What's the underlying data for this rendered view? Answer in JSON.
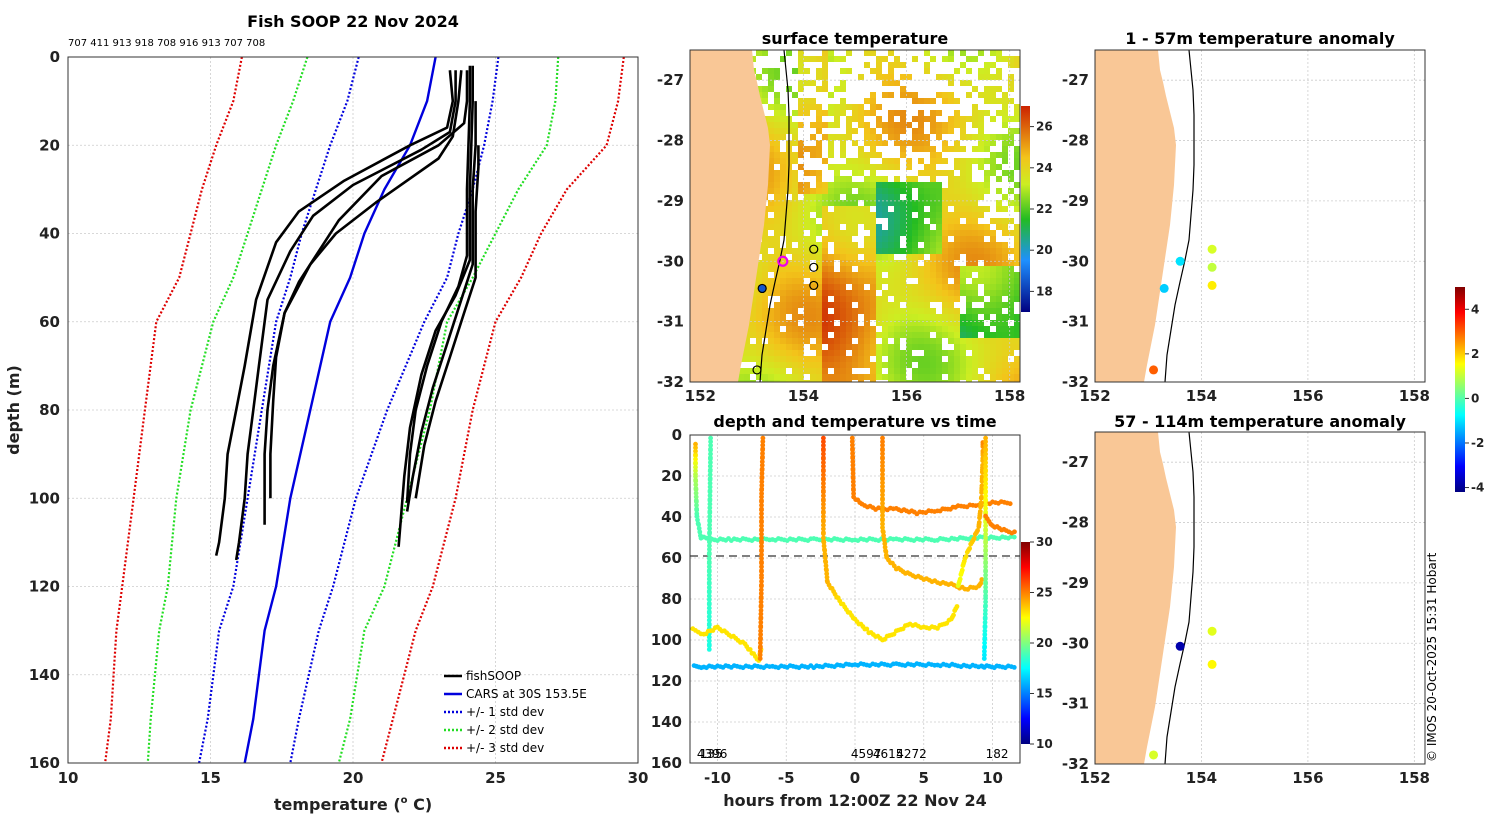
{
  "colors": {
    "fishsoop": "#000000",
    "cars": "#0000dd",
    "std1": "#0000dd",
    "std2": "#22dd22",
    "std3": "#dd0000",
    "land": "#f9c796",
    "grid": "#cccccc",
    "highlight": "#ee00ee",
    "dashed": "#808080"
  },
  "credit": "© IMOS 20-Oct-2025 15:31 Hobart",
  "chart_data": [
    {
      "id": "profile",
      "type": "line",
      "title": "Fish SOOP 22 Nov 2024",
      "subtitle": "707 411 913 918 708 916 913 707 708",
      "xlabel": "temperature (",
      "xlabel_sup": "o",
      "xlabel_tail": " C)",
      "ylabel": "depth (m)",
      "xlim": [
        10,
        30
      ],
      "ylim": [
        0,
        160
      ],
      "xticks": [
        "10",
        "15",
        "20",
        "25",
        "30"
      ],
      "yticks": [
        "0",
        "20",
        "40",
        "60",
        "80",
        "100",
        "120",
        "140",
        "160"
      ],
      "legend": [
        "fishSOOP",
        "CARS at 30S 153.5E",
        "+/- 1 std dev",
        "+/- 2 std dev",
        "+/- 3 std dev"
      ],
      "cars": {
        "x": [
          22.9,
          22.6,
          22.0,
          21.1,
          20.4,
          19.9,
          19.2,
          18.5,
          17.8,
          17.3,
          16.9,
          16.5,
          16.2
        ],
        "y": [
          0,
          10,
          20,
          30,
          40,
          50,
          60,
          80,
          100,
          120,
          130,
          150,
          160
        ]
      },
      "std_minus1": {
        "x": [
          20.2,
          19.8,
          19.2,
          18.7,
          18.2,
          17.8,
          17.3,
          16.8,
          16.3,
          15.8,
          15.3,
          14.9,
          14.6
        ],
        "y": [
          0,
          10,
          20,
          30,
          40,
          50,
          60,
          80,
          100,
          120,
          130,
          150,
          160
        ]
      },
      "std_plus1": {
        "x": [
          25.1,
          24.9,
          24.6,
          24.2,
          23.7,
          23.3,
          22.5,
          21.2,
          20.1,
          19.3,
          18.8,
          18.1,
          17.8
        ],
        "y": [
          0,
          10,
          20,
          30,
          40,
          50,
          60,
          80,
          100,
          120,
          130,
          150,
          160
        ]
      },
      "std_minus2": {
        "x": [
          18.4,
          17.9,
          17.3,
          16.8,
          16.3,
          15.8,
          15.1,
          14.3,
          13.8,
          13.5,
          13.2,
          12.9,
          12.8
        ],
        "y": [
          0,
          10,
          20,
          30,
          40,
          50,
          60,
          80,
          100,
          120,
          130,
          150,
          160
        ]
      },
      "std_plus2": {
        "x": [
          27.2,
          27.1,
          26.8,
          25.8,
          25.0,
          24.2,
          23.3,
          22.7,
          21.9,
          21.1,
          20.4,
          19.9,
          19.5
        ],
        "y": [
          0,
          10,
          20,
          30,
          40,
          50,
          60,
          80,
          100,
          120,
          130,
          150,
          160
        ]
      },
      "std_minus3": {
        "x": [
          16.1,
          15.8,
          15.2,
          14.7,
          14.3,
          13.9,
          13.1,
          12.7,
          12.3,
          11.9,
          11.7,
          11.5,
          11.3
        ],
        "y": [
          0,
          10,
          20,
          30,
          40,
          50,
          60,
          80,
          100,
          120,
          130,
          150,
          160
        ]
      },
      "std_plus3": {
        "x": [
          29.5,
          29.3,
          28.9,
          27.5,
          26.6,
          25.9,
          25.0,
          24.2,
          23.6,
          22.8,
          22.2,
          21.4,
          21.0
        ],
        "y": [
          0,
          10,
          20,
          30,
          40,
          50,
          60,
          80,
          100,
          120,
          130,
          150,
          160
        ]
      },
      "fishsoop": [
        {
          "x": [
            23.4,
            23.5,
            23.3,
            22.0,
            19.7,
            18.1,
            17.3,
            16.6,
            16.2,
            15.9,
            15.6,
            15.5,
            15.3,
            15.2
          ],
          "y": [
            3,
            10,
            16,
            20,
            28,
            35,
            42,
            55,
            70,
            80,
            90,
            100,
            110,
            113
          ]
        },
        {
          "x": [
            23.6,
            23.6,
            23.4,
            22.4,
            20.0,
            18.6,
            17.8,
            17.0,
            16.7,
            16.5,
            16.3,
            16.2,
            16.0,
            15.9
          ],
          "y": [
            3,
            10,
            17,
            21,
            29,
            36,
            44,
            55,
            70,
            80,
            90,
            100,
            110,
            114
          ]
        },
        {
          "x": [
            23.8,
            23.7,
            23.5,
            23.0,
            20.8,
            19.4,
            18.5,
            17.6,
            17.2,
            17.0,
            16.9,
            16.9,
            16.9
          ],
          "y": [
            3,
            10,
            18,
            23,
            33,
            40,
            47,
            58,
            70,
            80,
            90,
            100,
            106
          ]
        },
        {
          "x": [
            24.0,
            24.0,
            23.9,
            23.0,
            21.0,
            19.5,
            18.6,
            18.1,
            17.6,
            17.3,
            17.2,
            17.1,
            17.1
          ],
          "y": [
            3,
            10,
            15,
            20,
            27,
            37,
            46,
            51,
            58,
            68,
            78,
            90,
            100
          ]
        },
        {
          "x": [
            24.1,
            24.1,
            24.0,
            24.0,
            23.7,
            23.1,
            22.6,
            22.2,
            22.0,
            21.9
          ],
          "y": [
            2,
            10,
            30,
            45,
            52,
            60,
            70,
            80,
            90,
            101
          ]
        },
        {
          "x": [
            24.2,
            24.2,
            24.1,
            24.1,
            23.6,
            22.9,
            22.4,
            22.0,
            21.8,
            21.6
          ],
          "y": [
            2,
            10,
            30,
            46,
            54,
            62,
            72,
            84,
            95,
            111
          ]
        },
        {
          "x": [
            24.3,
            24.3,
            24.2,
            24.2,
            23.8,
            23.3,
            22.8,
            22.4,
            22.1,
            21.9
          ],
          "y": [
            10,
            20,
            30,
            47,
            55,
            65,
            75,
            85,
            95,
            103
          ]
        },
        {
          "x": [
            24.4,
            24.4,
            24.3,
            24.3,
            23.9,
            23.4,
            22.9,
            22.5,
            22.2
          ],
          "y": [
            20,
            25,
            35,
            50,
            58,
            68,
            78,
            88,
            100
          ]
        }
      ]
    },
    {
      "id": "sst",
      "type": "heatmap",
      "title": "surface temperature",
      "xlim": [
        151.8,
        158.2
      ],
      "ylim": [
        -32,
        -26.5
      ],
      "xticks": [
        "152",
        "154",
        "156",
        "158"
      ],
      "yticks": [
        "-27",
        "-28",
        "-29",
        "-30",
        "-31",
        "-32"
      ],
      "colorbar": {
        "min": 17,
        "max": 27,
        "ticks": [
          "18",
          "20",
          "22",
          "24",
          "26"
        ]
      },
      "stations": [
        {
          "lon": 154.2,
          "lat": -29.8,
          "style": "open"
        },
        {
          "lon": 154.2,
          "lat": -30.1,
          "style": "open"
        },
        {
          "lon": 154.2,
          "lat": -30.4,
          "style": "open"
        },
        {
          "lon": 153.1,
          "lat": -31.8,
          "style": "open"
        },
        {
          "lon": 153.6,
          "lat": -30.0,
          "style": "highlight"
        },
        {
          "lon": 153.2,
          "lat": -30.45,
          "style": "filled",
          "value": 18.5
        }
      ]
    },
    {
      "id": "time",
      "type": "scatter",
      "title": "depth and temperature vs time",
      "xlabel": "hours from 12:00Z 22 Nov 24",
      "xlim": [
        -12,
        12
      ],
      "ylim": [
        0,
        160
      ],
      "xticks": [
        "-10",
        "-5",
        "0",
        "5",
        "10"
      ],
      "yticks": [
        "0",
        "20",
        "40",
        "60",
        "80",
        "100",
        "120",
        "140",
        "160"
      ],
      "dashed_depth": 59,
      "colorbar": {
        "min": 10,
        "max": 30,
        "ticks": [
          "10",
          "15",
          "20",
          "25",
          "30"
        ]
      },
      "annotations": [
        {
          "x": -11.5,
          "text": "4396"
        },
        {
          "x": -11.3,
          "text": "135"
        },
        {
          "x": -0.3,
          "text": "4597"
        },
        {
          "x": 1.3,
          "text": "4615"
        },
        {
          "x": 3.0,
          "text": "4272"
        },
        {
          "x": 9.5,
          "text": "182"
        }
      ],
      "tracks": [
        {
          "t": [
            -11.6,
            -11.6,
            -11.5,
            -11.2,
            -10.4,
            -9.0,
            -6.0,
            -3.0,
            0.0,
            3.0,
            6.0,
            9.3,
            10.5,
            11.8
          ],
          "d": [
            5,
            20,
            40,
            50,
            51,
            51,
            51,
            51,
            51,
            51,
            51,
            50,
            50,
            50
          ],
          "temp": [
            24,
            21,
            19,
            19,
            19,
            19,
            19,
            19,
            19,
            19,
            19,
            19,
            19,
            19
          ]
        },
        {
          "t": [
            -11.7,
            -11.0,
            -10.0,
            -9.0,
            -6.0,
            -3.0,
            0.0,
            3.0,
            6.0,
            9.2,
            9.4,
            10.5,
            11.8
          ],
          "d": [
            113,
            113,
            113,
            113,
            113,
            113,
            112,
            112,
            112,
            113,
            113,
            113,
            113
          ],
          "temp": [
            16,
            16,
            16,
            16,
            16,
            16,
            16,
            16,
            16,
            16,
            16,
            16,
            16
          ]
        },
        {
          "t": [
            -10.5,
            -10.6,
            -10.6
          ],
          "d": [
            2,
            60,
            106
          ],
          "temp": [
            19,
            19,
            18
          ]
        },
        {
          "t": [
            -11.8,
            -11.0,
            -10.0,
            -9.0,
            -8.0,
            -7.5,
            -7.0,
            -6.8
          ],
          "d": [
            95,
            97,
            94,
            98,
            102,
            106,
            110,
            103
          ],
          "temp": [
            23,
            23,
            23,
            23,
            23,
            23,
            23,
            23
          ]
        },
        {
          "t": [
            -6.7,
            -6.8,
            -6.8,
            -6.9
          ],
          "d": [
            2,
            30,
            70,
            110
          ],
          "temp": [
            25,
            25,
            25,
            25
          ]
        },
        {
          "t": [
            -0.2,
            -0.1,
            0.5,
            1.5,
            3.0,
            4.5,
            6.0,
            7.5,
            9.0,
            10.0,
            11.5
          ],
          "d": [
            2,
            30,
            34,
            36,
            36,
            38,
            37,
            35,
            34,
            33,
            33
          ],
          "temp": [
            25,
            25,
            25,
            25,
            25,
            25,
            25,
            25,
            25,
            25,
            25
          ]
        },
        {
          "t": [
            -2.3,
            -2.3,
            -2.0,
            -1.0,
            0.0,
            1.0,
            2.0,
            3.0,
            4.0,
            5.0,
            6.0,
            7.0,
            7.5
          ],
          "d": [
            2,
            50,
            72,
            82,
            90,
            96,
            100,
            96,
            92,
            94,
            94,
            90,
            82
          ],
          "temp": [
            26,
            24,
            24,
            23,
            23,
            23,
            23,
            23,
            23,
            23,
            23,
            23,
            23
          ]
        },
        {
          "t": [
            2.0,
            2.0,
            2.3,
            3.0,
            4.0,
            5.0,
            6.0,
            7.0,
            8.0,
            9.0,
            9.3
          ],
          "d": [
            2,
            45,
            60,
            65,
            68,
            70,
            72,
            73,
            75,
            74,
            70
          ],
          "temp": [
            25,
            24,
            24,
            24,
            24,
            24,
            24,
            24,
            24,
            24,
            24
          ]
        },
        {
          "t": [
            7.5,
            8.0,
            9.0,
            9.2,
            9.3,
            9.3
          ],
          "d": [
            74,
            60,
            45,
            30,
            10,
            2
          ],
          "temp": [
            22,
            23,
            24,
            24,
            24,
            25
          ]
        },
        {
          "t": [
            9.5,
            9.5,
            9.5,
            9.4
          ],
          "d": [
            2,
            40,
            80,
            110
          ],
          "temp": [
            24,
            22,
            19,
            17
          ]
        },
        {
          "t": [
            9.5,
            10.0,
            11.0,
            11.8
          ],
          "d": [
            40,
            44,
            47,
            48
          ],
          "temp": [
            25,
            25,
            25,
            25
          ]
        }
      ]
    },
    {
      "id": "anom1",
      "type": "scatter",
      "title": "1 - 57m temperature anomaly",
      "xlim": [
        152,
        158.2
      ],
      "ylim": [
        -32,
        -26.5
      ],
      "xticks": [
        "152",
        "154",
        "156",
        "158"
      ],
      "yticks": [
        "-27",
        "-28",
        "-29",
        "-30",
        "-31",
        "-32"
      ],
      "points": [
        {
          "lon": 154.2,
          "lat": -29.8,
          "value": 1.2
        },
        {
          "lon": 154.2,
          "lat": -30.1,
          "value": 1.0
        },
        {
          "lon": 154.2,
          "lat": -30.4,
          "value": 1.7
        },
        {
          "lon": 153.6,
          "lat": -30.0,
          "value": -1.0
        },
        {
          "lon": 153.3,
          "lat": -30.45,
          "value": -1.2
        },
        {
          "lon": 153.1,
          "lat": -31.8,
          "value": 3.0
        }
      ]
    },
    {
      "id": "anom2",
      "type": "scatter",
      "title": "57 - 114m temperature anomaly",
      "xlim": [
        152,
        158.2
      ],
      "ylim": [
        -32,
        -26.5
      ],
      "xticks": [
        "152",
        "154",
        "156",
        "158"
      ],
      "yticks": [
        "-27",
        "-28",
        "-29",
        "-30",
        "-31",
        "-32"
      ],
      "colorbar": {
        "min": -4.2,
        "max": 5.0,
        "ticks": [
          "-4",
          "-2",
          "0",
          "2",
          "4"
        ]
      },
      "points": [
        {
          "lon": 154.2,
          "lat": -29.8,
          "value": 1.3
        },
        {
          "lon": 154.2,
          "lat": -30.35,
          "value": 1.6
        },
        {
          "lon": 153.6,
          "lat": -30.05,
          "value": -3.8
        },
        {
          "lon": 153.1,
          "lat": -31.85,
          "value": 1.2
        }
      ]
    }
  ]
}
